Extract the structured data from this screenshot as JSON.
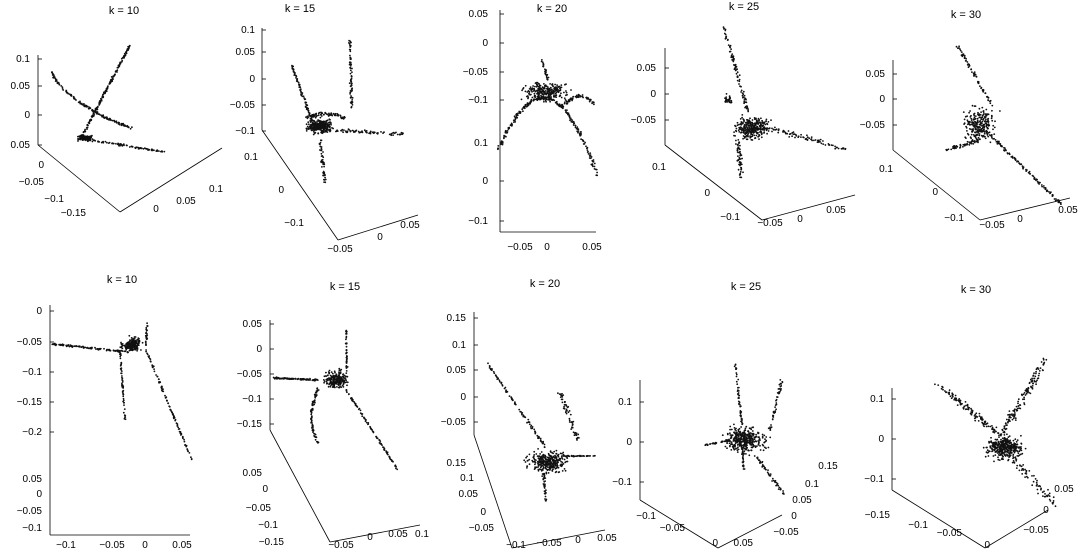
{
  "chart_data": [
    {
      "type": "scatter",
      "title": "k = 10",
      "shape": "U-arms",
      "tick_labels": {
        "z": [
          "0.1",
          "0.05",
          "0",
          "0.05"
        ],
        "a": [
          "0",
          "−0.05",
          "−0.1",
          "−0.15"
        ],
        "b": [
          "0",
          "0.05",
          "0.1"
        ]
      }
    },
    {
      "type": "scatter",
      "title": "k = 15",
      "shape": "bowl-spike",
      "tick_labels": {
        "z": [
          "0.1",
          "0.05",
          "0",
          "−0.05",
          "−0.1"
        ],
        "a": [
          "0.1",
          "0",
          "−0.1"
        ],
        "b": [
          "−0.05",
          "0",
          "0.05"
        ]
      }
    },
    {
      "type": "scatter",
      "title": "k = 20",
      "shape": "arch",
      "tick_labels": {
        "z": [
          "0.05",
          "0",
          "−0.05",
          "−0.1",
          "0.1",
          "0",
          "−0.1"
        ],
        "b": [
          "−0.05",
          "0",
          "0.05"
        ]
      }
    },
    {
      "type": "scatter",
      "title": "k = 25",
      "shape": "cluster-arms",
      "tick_labels": {
        "z": [
          "0.05",
          "0",
          "−0.05"
        ],
        "a": [
          "0.1",
          "0",
          "−0.1"
        ],
        "b": [
          "−0.05",
          "0",
          "0.05"
        ]
      }
    },
    {
      "type": "scatter",
      "title": "k = 30",
      "shape": "cluster-arms",
      "tick_labels": {
        "z": [
          "0.05",
          "0",
          "−0.05"
        ],
        "a": [
          "0.1",
          "0",
          "−0.1"
        ],
        "b": [
          "−0.05",
          "0",
          "0.05"
        ]
      }
    },
    {
      "type": "scatter",
      "title": "k = 10",
      "shape": "three-arms",
      "tick_labels": {
        "z": [
          "0",
          "−0.05",
          "−0.1",
          "−0.15",
          "−0.2"
        ],
        "a": [
          "0.05",
          "0",
          "−0.05",
          "−0.1"
        ],
        "b": [
          "−0.1",
          "−0.05",
          "0",
          "0.05"
        ]
      }
    },
    {
      "type": "scatter",
      "title": "k = 15",
      "shape": "three-arms",
      "tick_labels": {
        "z": [
          "0.05",
          "0",
          "−0.05",
          "−0.1",
          "−0.15"
        ],
        "a": [
          "0.05",
          "0",
          "−0.05",
          "−0.1",
          "−0.15"
        ],
        "b": [
          "−0.05",
          "0",
          "0.05",
          "0.1"
        ]
      }
    },
    {
      "type": "scatter",
      "title": "k = 20",
      "shape": "cluster-arms",
      "tick_labels": {
        "z": [
          "0.15",
          "0.1",
          "0.05",
          "0",
          "−0.05"
        ],
        "a": [
          "0.15",
          "0.1",
          "0.05",
          "0",
          "−0.05"
        ],
        "b": [
          "−0.1",
          "−0.05",
          "0",
          "0.05"
        ]
      }
    },
    {
      "type": "scatter",
      "title": "k = 25",
      "shape": "x-cluster",
      "tick_labels": {
        "z": [
          "0.1",
          "0",
          "−0.1"
        ],
        "a": [
          "−0.1",
          "−0.05",
          "0",
          "0.05"
        ],
        "b": [
          "0.15",
          "0.1",
          "0.05",
          "0",
          "−0.05"
        ]
      }
    },
    {
      "type": "scatter",
      "title": "k = 30",
      "shape": "v-cloud",
      "tick_labels": {
        "z": [
          "0.1",
          "0",
          "−0.1"
        ],
        "a": [
          "−0.15",
          "−0.1",
          "−0.05",
          "0"
        ],
        "b": [
          "0.05",
          "0",
          "−0.05"
        ]
      }
    }
  ]
}
